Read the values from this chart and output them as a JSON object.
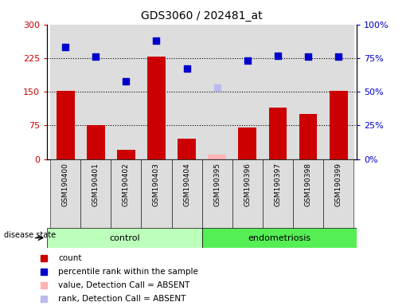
{
  "title": "GDS3060 / 202481_at",
  "samples": [
    "GSM190400",
    "GSM190401",
    "GSM190402",
    "GSM190403",
    "GSM190404",
    "GSM190395",
    "GSM190396",
    "GSM190397",
    "GSM190398",
    "GSM190399"
  ],
  "bar_values": [
    152,
    76,
    20,
    228,
    45,
    10,
    70,
    115,
    100,
    152
  ],
  "bar_absent": [
    false,
    false,
    false,
    false,
    false,
    true,
    false,
    false,
    false,
    false
  ],
  "rank_values": [
    83,
    76,
    58,
    88,
    67,
    53,
    73,
    77,
    76,
    76
  ],
  "rank_absent": [
    false,
    false,
    false,
    false,
    false,
    true,
    false,
    false,
    false,
    false
  ],
  "n_control": 5,
  "left_ylim": [
    0,
    300
  ],
  "right_ylim": [
    0,
    100
  ],
  "left_yticks": [
    0,
    75,
    150,
    225,
    300
  ],
  "right_yticks": [
    0,
    25,
    50,
    75,
    100
  ],
  "left_yticklabels": [
    "0",
    "75",
    "150",
    "225",
    "300"
  ],
  "right_yticklabels": [
    "0%",
    "25%",
    "50%",
    "75%",
    "100%"
  ],
  "bar_color": "#CC0000",
  "bar_absent_color": "#FFB3B3",
  "rank_color": "#0000CC",
  "rank_absent_color": "#BBBBEE",
  "control_color": "#BBFFBB",
  "endo_color": "#55EE55",
  "bg_color": "#DDDDDD",
  "legend_items": [
    {
      "label": "count",
      "color": "#CC0000"
    },
    {
      "label": "percentile rank within the sample",
      "color": "#0000CC"
    },
    {
      "label": "value, Detection Call = ABSENT",
      "color": "#FFB3B3"
    },
    {
      "label": "rank, Detection Call = ABSENT",
      "color": "#BBBBEE"
    }
  ]
}
